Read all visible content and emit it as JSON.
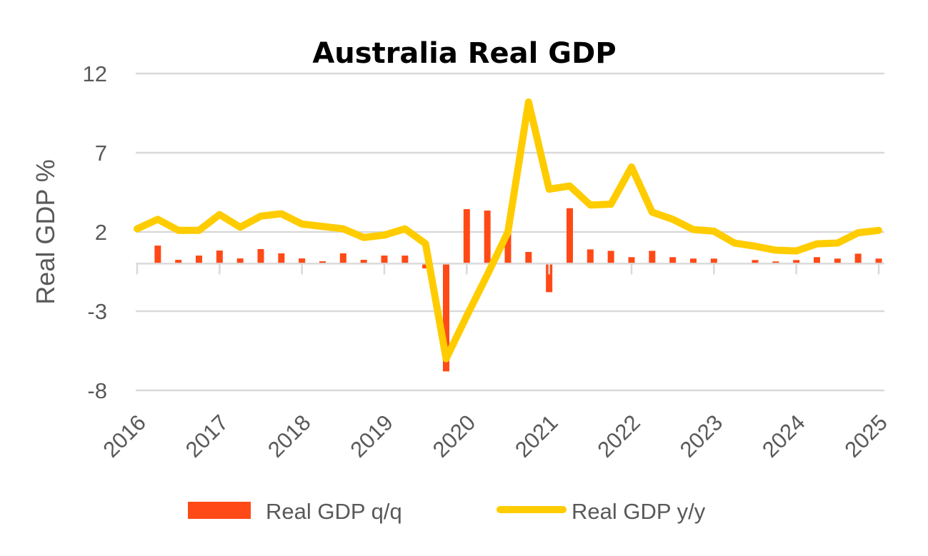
{
  "chart_data": {
    "type": "bar+line",
    "title": "Australia Real GDP",
    "xlabel": "",
    "ylabel": "Real GDP %",
    "ylim": [
      -8,
      12
    ],
    "yticks": [
      "12",
      "7",
      "2",
      "-3",
      "-8"
    ],
    "ytick_values": [
      12,
      7,
      2,
      -3,
      -8
    ],
    "xtick_labels": [
      "2016",
      "2017",
      "2018",
      "2019",
      "2020",
      "2021",
      "2022",
      "2023",
      "2024",
      "2025"
    ],
    "x_frequency": "quarterly",
    "grid": "horizontal",
    "legend_position": "bottom",
    "series": [
      {
        "name": "Real GDP q/q",
        "type": "bar",
        "color": "#FF4A17",
        "values": [
          null,
          1.14,
          0.24,
          0.51,
          0.83,
          0.33,
          0.92,
          0.65,
          0.33,
          0.15,
          0.65,
          0.24,
          0.51,
          0.51,
          -0.3,
          -6.8,
          3.44,
          3.35,
          1.9,
          0.74,
          -1.8,
          3.5,
          0.9,
          0.81,
          0.41,
          0.81,
          0.41,
          0.32,
          0.32,
          0,
          0.23,
          0.14,
          0.23,
          0.41,
          0.32,
          0.63,
          0.32
        ]
      },
      {
        "name": "Real GDP y/y",
        "type": "line",
        "color": "#FFCC00",
        "values": [
          2.2,
          2.8,
          2.1,
          2.1,
          3.1,
          2.3,
          3.0,
          3.15,
          2.5,
          2.35,
          2.2,
          1.65,
          1.8,
          2.2,
          1.26,
          -6.0,
          -3.3,
          -0.7,
          2.0,
          10.2,
          4.7,
          4.9,
          3.7,
          3.75,
          6.1,
          3.25,
          2.8,
          2.15,
          2.05,
          1.3,
          1.1,
          0.85,
          0.8,
          1.25,
          1.3,
          1.95,
          2.1
        ]
      }
    ]
  }
}
